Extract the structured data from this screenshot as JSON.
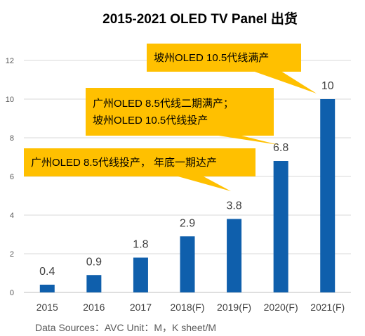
{
  "chart_data": {
    "type": "bar",
    "title": "2015-2021 OLED TV Panel 出货",
    "categories": [
      "2015",
      "2016",
      "2017",
      "2018(F)",
      "2019(F)",
      "2020(F)",
      "2021(F)"
    ],
    "values": [
      0.4,
      0.9,
      1.8,
      2.9,
      3.8,
      6.8,
      10
    ],
    "data_labels": [
      "0.4",
      "0.9",
      "1.8",
      "2.9",
      "3.8",
      "6.8",
      "10"
    ],
    "ylim": [
      0,
      12
    ],
    "yticks": [
      "0",
      "2",
      "4",
      "6",
      "8",
      "10",
      "12"
    ],
    "grid": true,
    "bar_color": "#0f5fac",
    "source_note": "Data Sources：AVC    Unit：M，K sheet/M",
    "annotations": [
      {
        "lines": [
          "广州OLED 8.5代线投产，  年底一期达产"
        ],
        "category_index": 4
      },
      {
        "lines": [
          "广州OLED 8.5代线二期满产；",
          "坡州OLED 10.5代线投产"
        ],
        "category_index": 5
      },
      {
        "lines": [
          "坡州OLED 10.5代线满产"
        ],
        "category_index": 6
      }
    ],
    "callout_color": "#ffc000"
  }
}
